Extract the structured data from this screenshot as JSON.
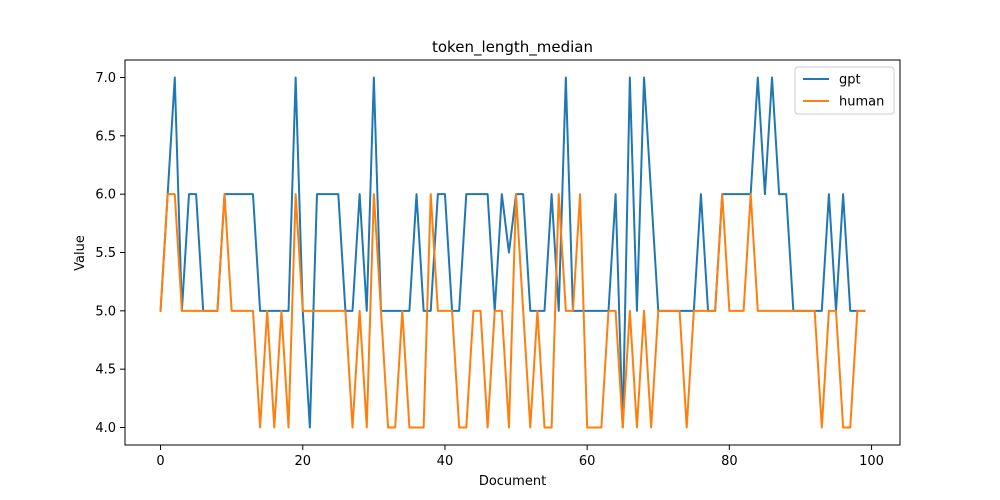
{
  "chart_data": {
    "type": "line",
    "title": "token_length_median",
    "xlabel": "Document",
    "ylabel": "Value",
    "xlim": [
      -5,
      104
    ],
    "ylim": [
      3.85,
      7.15
    ],
    "xticks": [
      0,
      20,
      40,
      60,
      80,
      100
    ],
    "xtick_labels": [
      "0",
      "20",
      "40",
      "60",
      "80",
      "100"
    ],
    "yticks": [
      4.0,
      4.5,
      5.0,
      5.5,
      6.0,
      6.5,
      7.0
    ],
    "ytick_labels": [
      "4.0",
      "4.5",
      "5.0",
      "5.5",
      "6.0",
      "6.5",
      "7.0"
    ],
    "grid": false,
    "legend_position": "top-right",
    "x": [
      0,
      1,
      2,
      3,
      4,
      5,
      6,
      7,
      8,
      9,
      10,
      11,
      12,
      13,
      14,
      15,
      16,
      17,
      18,
      19,
      20,
      21,
      22,
      23,
      24,
      25,
      26,
      27,
      28,
      29,
      30,
      31,
      32,
      33,
      34,
      35,
      36,
      37,
      38,
      39,
      40,
      41,
      42,
      43,
      44,
      45,
      46,
      47,
      48,
      49,
      50,
      51,
      52,
      53,
      54,
      55,
      56,
      57,
      58,
      59,
      60,
      61,
      62,
      63,
      64,
      65,
      66,
      67,
      68,
      69,
      70,
      71,
      72,
      73,
      74,
      75,
      76,
      77,
      78,
      79,
      80,
      81,
      82,
      83,
      84,
      85,
      86,
      87,
      88,
      89,
      90,
      91,
      92,
      93,
      94,
      95,
      96,
      97,
      98,
      99
    ],
    "series": [
      {
        "name": "gpt",
        "color": "#1f77b4",
        "values": [
          5,
          6,
          7,
          5,
          6,
          6,
          5,
          5,
          5,
          6,
          6,
          6,
          6,
          6,
          5,
          5,
          5,
          5,
          5,
          7,
          5,
          4,
          6,
          6,
          6,
          6,
          5,
          5,
          6,
          5,
          7,
          5,
          5,
          5,
          5,
          5,
          6,
          5,
          5,
          6,
          6,
          5,
          5,
          6,
          6,
          6,
          6,
          5,
          6,
          5.5,
          6,
          6,
          5,
          5,
          5,
          6,
          5,
          7,
          5,
          5,
          5,
          5,
          5,
          5,
          6,
          4,
          7,
          5,
          7,
          6,
          5,
          5,
          5,
          5,
          5,
          5,
          6,
          5,
          5,
          6,
          6,
          6,
          6,
          6,
          7,
          6,
          7,
          6,
          6,
          5,
          5,
          5,
          5,
          5,
          6,
          5,
          6,
          5,
          5,
          5
        ]
      },
      {
        "name": "human",
        "color": "#ff7f0e",
        "values": [
          5,
          6,
          6,
          5,
          5,
          5,
          5,
          5,
          5,
          6,
          5,
          5,
          5,
          5,
          4,
          5,
          4,
          5,
          4,
          6,
          5,
          5,
          5,
          5,
          5,
          5,
          5,
          4,
          5,
          4,
          6,
          5,
          4,
          4,
          5,
          4,
          4,
          4,
          6,
          5,
          5,
          5,
          4,
          4,
          5,
          5,
          4,
          5,
          5,
          4,
          6,
          5,
          4,
          5,
          4,
          4,
          6,
          5,
          5,
          6,
          4,
          4,
          4,
          5,
          5,
          4,
          5,
          4,
          5,
          4,
          5,
          5,
          5,
          5,
          4,
          5,
          5,
          5,
          5,
          6,
          5,
          5,
          5,
          6,
          5,
          5,
          5,
          5,
          5,
          5,
          5,
          5,
          5,
          4,
          5,
          5,
          4,
          4,
          5,
          5
        ]
      }
    ]
  }
}
